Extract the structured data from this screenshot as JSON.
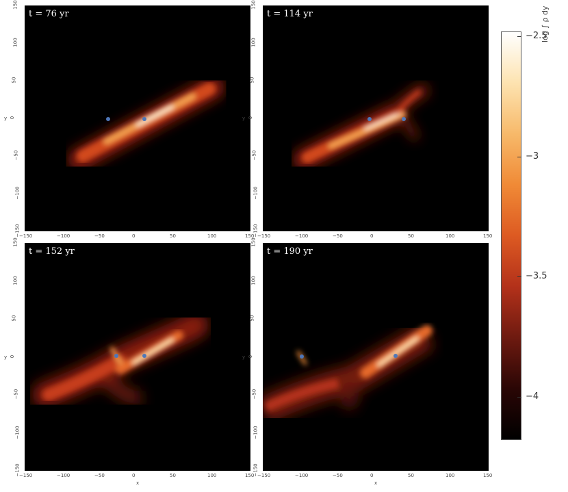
{
  "chart_data": [
    {
      "type": "heatmap",
      "title": "t = 76 yr",
      "x_ticks": [
        "−150",
        "−100",
        "−50",
        "0",
        "50",
        "100",
        "150"
      ],
      "y_ticks": [
        "150",
        "100",
        "50",
        "0",
        "−50",
        "−100",
        "−150"
      ],
      "xlabel": "",
      "ylabel": "y",
      "ylim": [
        -150,
        150
      ],
      "xlim": [
        -150,
        150
      ]
    },
    {
      "type": "heatmap",
      "title": "t = 114 yr",
      "x_ticks": [
        "−150",
        "−100",
        "−50",
        "0",
        "50",
        "100",
        "150"
      ],
      "y_ticks": [
        "150",
        "100",
        "50",
        "0",
        "−50",
        "−100",
        "−150"
      ],
      "xlabel": "",
      "ylabel": "y",
      "ylim": [
        -150,
        150
      ],
      "xlim": [
        -150,
        150
      ]
    },
    {
      "type": "heatmap",
      "title": "t = 152 yr",
      "x_ticks": [
        "−150",
        "−100",
        "−50",
        "0",
        "50",
        "100",
        "150"
      ],
      "y_ticks": [
        "150",
        "100",
        "50",
        "0",
        "−50",
        "−100",
        "−150"
      ],
      "xlabel": "x",
      "ylabel": "y",
      "ylim": [
        -150,
        150
      ],
      "xlim": [
        -150,
        150
      ]
    },
    {
      "type": "heatmap",
      "title": "t = 190 yr",
      "x_ticks": [
        "−150",
        "−100",
        "−50",
        "0",
        "50",
        "100",
        "150"
      ],
      "y_ticks": [
        "150",
        "100",
        "50",
        "0",
        "−50",
        "−100",
        "−150"
      ],
      "xlabel": "x",
      "ylabel": "y",
      "ylim": [
        -150,
        150
      ],
      "xlim": [
        -150,
        150
      ]
    }
  ],
  "colorbar": {
    "label": "log ∫ ρ dy",
    "ticks": [
      {
        "value": -2.5,
        "label": "−2.5"
      },
      {
        "value": -3,
        "label": "−3"
      },
      {
        "value": -3.5,
        "label": "−3.5"
      },
      {
        "value": -4,
        "label": "−4"
      }
    ],
    "range": [
      -4.18,
      -2.48
    ],
    "colors": [
      "#000000",
      "#2a0605",
      "#6e1a10",
      "#b3311a",
      "#dd5a22",
      "#f08a36",
      "#f7b96a",
      "#fde3b0",
      "#ffffff"
    ]
  }
}
